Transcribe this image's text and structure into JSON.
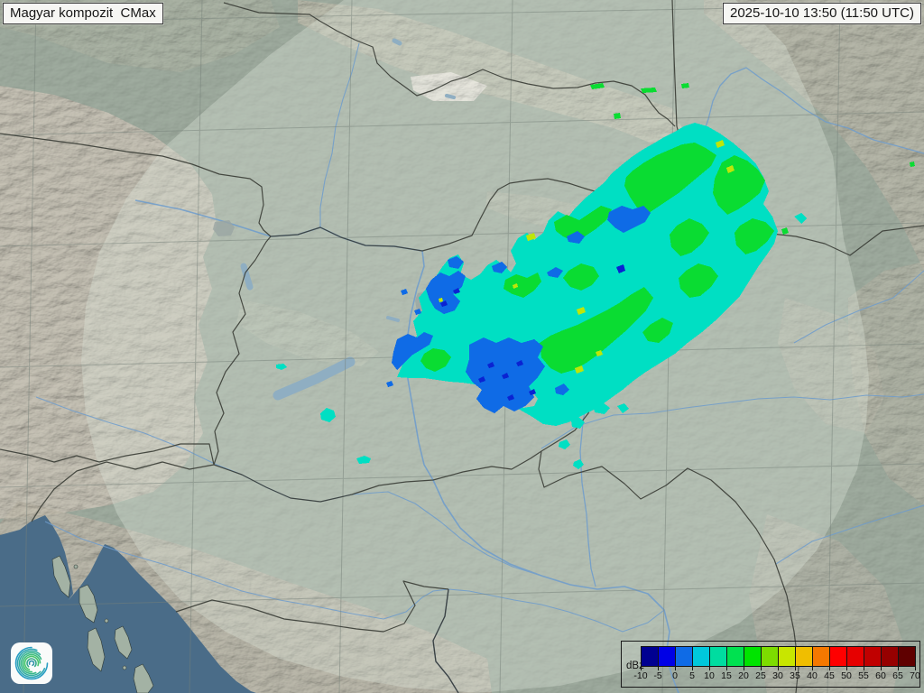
{
  "header": {
    "product_label": "Magyar kompozit  CMax",
    "timestamp": "2025-10-10 13:50 (11:50 UTC)"
  },
  "legend": {
    "unit": "dBz",
    "tick_labels": [
      "-10",
      "-5",
      "0",
      "5",
      "10",
      "15",
      "20",
      "25",
      "30",
      "35",
      "40",
      "45",
      "50",
      "55",
      "60",
      "65",
      "70"
    ],
    "cell_colors": [
      "#000091",
      "#0000E6",
      "#0F6BE6",
      "#00C8DC",
      "#00DCA0",
      "#00E150",
      "#00E400",
      "#7DDC00",
      "#C8E600",
      "#F0BE00",
      "#F57800",
      "#FF0000",
      "#E60000",
      "#C00000",
      "#960000",
      "#5F0000"
    ]
  },
  "map": {
    "echo_colors": {
      "cyan": "#00DFC3",
      "green": "#0ADC32",
      "blue": "#0F6BE6",
      "dark_blue": "#0A23D2",
      "yellow": "#BEE609"
    },
    "base_color": "#9FAC9F",
    "coverage_tint": "rgba(224,233,221,0.34)",
    "sea_color": "#4A6C88",
    "lake_color": "#8FAEC2",
    "river_color": "#6E9CCD",
    "border_color": "#3B3E37",
    "grid_color": "#76817A"
  },
  "logo": {
    "name": "met-service-spiral-logo"
  }
}
